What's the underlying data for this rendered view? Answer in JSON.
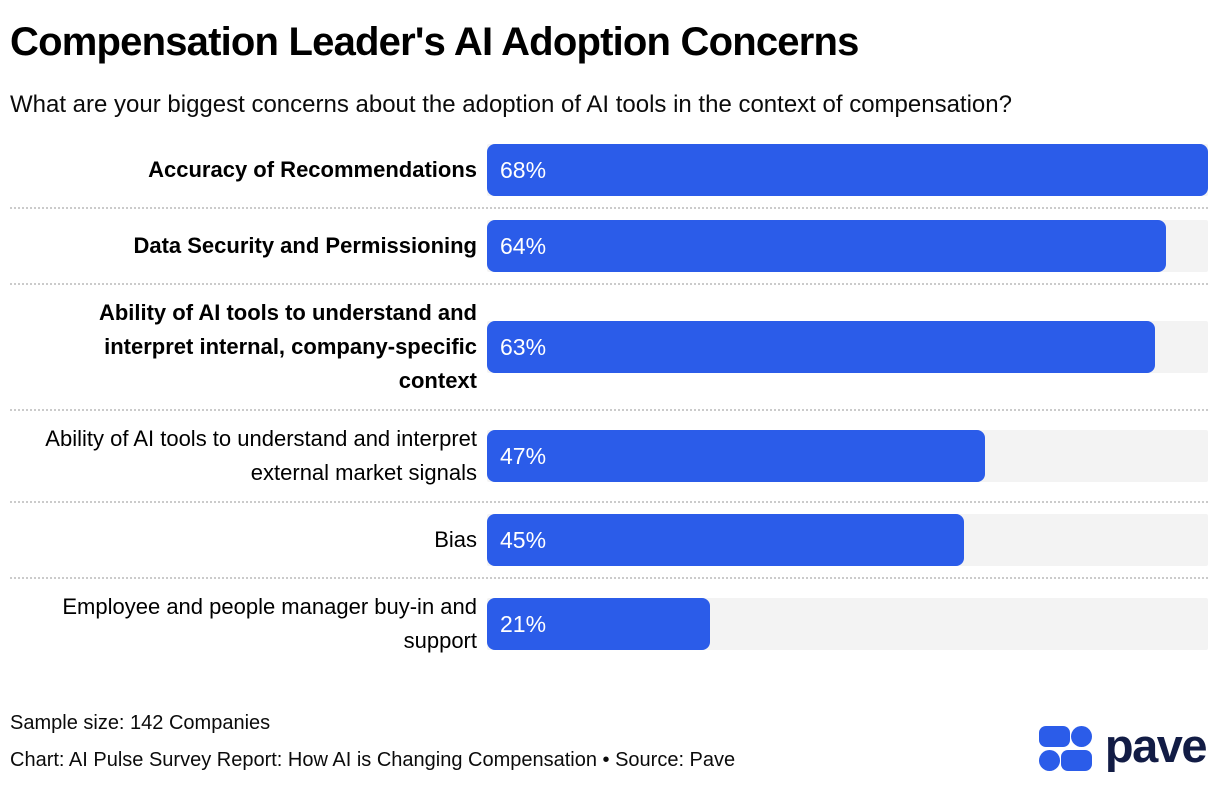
{
  "title": "Compensation Leader's AI Adoption Concerns",
  "subtitle": "What are your biggest concerns about the adoption of AI tools in the context of compensation?",
  "chart_data": {
    "type": "bar",
    "orientation": "horizontal",
    "title": "Compensation Leader's AI Adoption Concerns",
    "subtitle": "What are your biggest concerns about the adoption of AI tools in the context of compensation?",
    "categories": [
      "Accuracy of Recommendations",
      "Data Security and Permissioning",
      "Ability of AI tools to understand and interpret internal, company-specific context",
      "Ability of AI tools to understand and interpret external market signals",
      "Bias",
      "Employee and people manager buy-in and support"
    ],
    "values": [
      68,
      64,
      63,
      47,
      45,
      21
    ],
    "value_suffix": "%",
    "value_labels": [
      "68%",
      "64%",
      "63%",
      "47%",
      "45%",
      "21%"
    ],
    "bold_categories": [
      true,
      true,
      true,
      false,
      false,
      false
    ],
    "axis_max": 68,
    "bar_color": "#2b5ce9",
    "track_color": "#f3f3f3",
    "separator_style": "dotted",
    "legend": "none",
    "grid": false
  },
  "footer": {
    "sample_size": "Sample size: 142 Companies",
    "attribution": "Chart: AI Pulse Survey Report: How AI is Changing Compensation • Source: Pave"
  },
  "logo": {
    "wordmark": "pave",
    "mark_color": "#2b5ce9",
    "wordmark_color": "#121c45"
  }
}
